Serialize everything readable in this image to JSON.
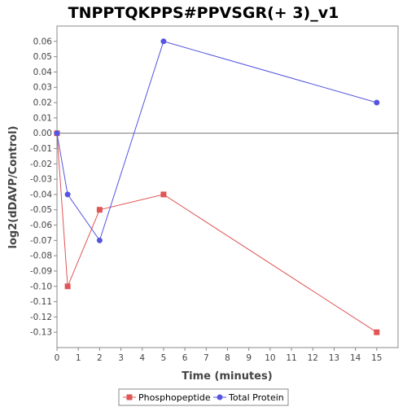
{
  "chart_data": {
    "type": "line",
    "title": "TNPPTQKPPS#PPVSGR(+ 3)_v1",
    "xlabel": "Time (minutes)",
    "ylabel": "log2(dDAVP/Control)",
    "xlim": [
      0,
      16
    ],
    "ylim": [
      -0.14,
      0.07
    ],
    "xticks": [
      "0",
      "1",
      "2",
      "3",
      "4",
      "5",
      "6",
      "7",
      "8",
      "9",
      "10",
      "11",
      "12",
      "13",
      "14",
      "15"
    ],
    "yticks": [
      "0.06",
      "0.05",
      "0.04",
      "0.03",
      "0.02",
      "0.01",
      "0.00",
      "-0.01",
      "-0.02",
      "-0.03",
      "-0.04",
      "-0.05",
      "-0.06",
      "-0.07",
      "-0.08",
      "-0.09",
      "-0.10",
      "-0.11",
      "-0.12",
      "-0.13"
    ],
    "legend_position": "bottom",
    "series": [
      {
        "name": "Phosphopeptide",
        "color": "#e05555",
        "marker": "square",
        "x": [
          0,
          0.5,
          2,
          5,
          15
        ],
        "y": [
          0.0,
          -0.1,
          -0.05,
          -0.04,
          -0.13
        ]
      },
      {
        "name": "Total Protein",
        "color": "#5555e0",
        "marker": "circle",
        "x": [
          0,
          0.5,
          2,
          5,
          15
        ],
        "y": [
          0.0,
          -0.04,
          -0.07,
          0.06,
          0.02
        ]
      }
    ]
  }
}
